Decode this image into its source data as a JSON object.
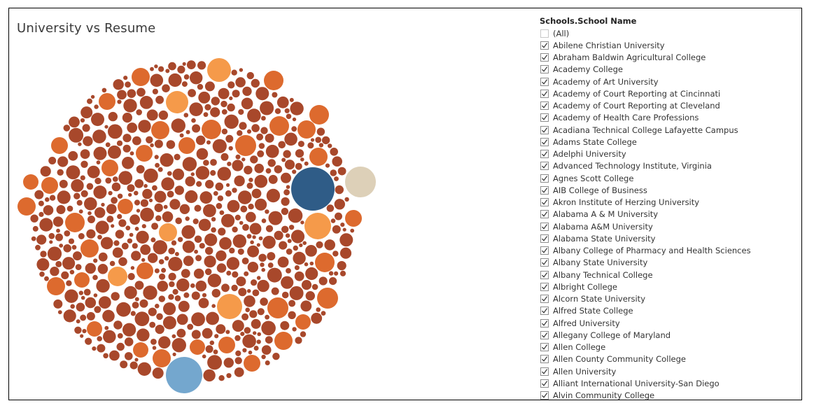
{
  "viz": {
    "title": "University vs Resume",
    "colors": {
      "base": "#A8482B",
      "mid": "#DD6A2E",
      "light_orange": "#F59A4A",
      "dark_blue": "#2F5C87",
      "light_blue": "#74A7CE",
      "beige": "#DDD0B8"
    }
  },
  "filter": {
    "title": "Schools.School Name",
    "items": [
      {
        "label": "(All)",
        "checked": false
      },
      {
        "label": "Abilene Christian University",
        "checked": true
      },
      {
        "label": "Abraham Baldwin Agricultural College",
        "checked": true
      },
      {
        "label": "Academy College",
        "checked": true
      },
      {
        "label": "Academy of Art University",
        "checked": true
      },
      {
        "label": "Academy of Court Reporting at Cincinnati",
        "checked": true
      },
      {
        "label": "Academy of Court Reporting at Cleveland",
        "checked": true
      },
      {
        "label": "Academy of Health Care Professions",
        "checked": true
      },
      {
        "label": "Acadiana Technical College Lafayette Campus",
        "checked": true
      },
      {
        "label": "Adams State College",
        "checked": true
      },
      {
        "label": "Adelphi University",
        "checked": true
      },
      {
        "label": "Advanced Technology Institute, Virginia",
        "checked": true
      },
      {
        "label": "Agnes Scott College",
        "checked": true
      },
      {
        "label": "AIB College of Business",
        "checked": true
      },
      {
        "label": "Akron Institute of Herzing University",
        "checked": true
      },
      {
        "label": "Alabama A & M University",
        "checked": true
      },
      {
        "label": "Alabama A&M University",
        "checked": true
      },
      {
        "label": "Alabama State University",
        "checked": true
      },
      {
        "label": "Albany College of Pharmacy and Health Sciences",
        "checked": true
      },
      {
        "label": "Albany State University",
        "checked": true
      },
      {
        "label": "Albany Technical College",
        "checked": true
      },
      {
        "label": "Albright College",
        "checked": true
      },
      {
        "label": "Alcorn State University",
        "checked": true
      },
      {
        "label": "Alfred State College",
        "checked": true
      },
      {
        "label": "Alfred University",
        "checked": true
      },
      {
        "label": "Allegany College of Maryland",
        "checked": true
      },
      {
        "label": "Allen College",
        "checked": true
      },
      {
        "label": "Allen County Community College",
        "checked": true
      },
      {
        "label": "Allen University",
        "checked": true
      },
      {
        "label": "Alliant International University-San Diego",
        "checked": true
      },
      {
        "label": "Alvin Community College",
        "checked": true
      }
    ]
  }
}
